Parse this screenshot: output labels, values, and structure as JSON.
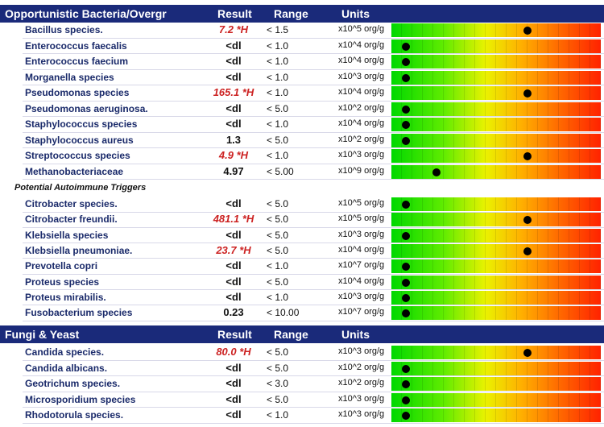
{
  "sections": [
    {
      "title": "Opportunistic Bacteria/Overgr",
      "col_result": "Result",
      "col_range": "Range",
      "col_units": "Units",
      "rows": [
        {
          "name": "Bacillus species.",
          "result": "7.2 *H",
          "high": true,
          "range": "< 1.5",
          "units": "x10^5 org/g",
          "level": 0.65
        },
        {
          "name": "Enterococcus faecalis",
          "result": "<dl",
          "high": false,
          "range": "< 1.0",
          "units": "x10^4 org/g",
          "level": 0.07
        },
        {
          "name": "Enterococcus faecium",
          "result": "<dl",
          "high": false,
          "range": "< 1.0",
          "units": "x10^4 org/g",
          "level": 0.07
        },
        {
          "name": "Morganella species",
          "result": "<dl",
          "high": false,
          "range": "< 1.0",
          "units": "x10^3 org/g",
          "level": 0.07
        },
        {
          "name": "Pseudomonas species",
          "result": "165.1 *H",
          "high": true,
          "range": "< 1.0",
          "units": "x10^4 org/g",
          "level": 0.65
        },
        {
          "name": "Pseudomonas aeruginosa.",
          "result": "<dl",
          "high": false,
          "range": "< 5.0",
          "units": "x10^2 org/g",
          "level": 0.07
        },
        {
          "name": "Staphylococcus species",
          "result": "<dl",
          "high": false,
          "range": "< 1.0",
          "units": "x10^4 org/g",
          "level": 0.07
        },
        {
          "name": "Staphylococcus aureus",
          "result": "1.3",
          "high": false,
          "range": "< 5.0",
          "units": "x10^2 org/g",
          "level": 0.07
        },
        {
          "name": "Streptococcus species",
          "result": "4.9 *H",
          "high": true,
          "range": "< 1.0",
          "units": "x10^3 org/g",
          "level": 0.65
        },
        {
          "name": "Methanobacteriaceae",
          "result": "4.97",
          "high": false,
          "range": "< 5.00",
          "units": "x10^9 org/g",
          "level": 0.215
        }
      ]
    },
    {
      "subtitle": "Potential Autoimmune Triggers",
      "rows": [
        {
          "name": "Citrobacter species.",
          "result": "<dl",
          "high": false,
          "range": "< 5.0",
          "units": "x10^5 org/g",
          "level": 0.07
        },
        {
          "name": "Citrobacter freundii.",
          "result": "481.1 *H",
          "high": true,
          "range": "< 5.0",
          "units": "x10^5 org/g",
          "level": 0.65
        },
        {
          "name": "Klebsiella species",
          "result": "<dl",
          "high": false,
          "range": "< 5.0",
          "units": "x10^3 org/g",
          "level": 0.07
        },
        {
          "name": "Klebsiella pneumoniae.",
          "result": "23.7 *H",
          "high": true,
          "range": "< 5.0",
          "units": "x10^4 org/g",
          "level": 0.65
        },
        {
          "name": "Prevotella copri",
          "result": "<dl",
          "high": false,
          "range": "< 1.0",
          "units": "x10^7 org/g",
          "level": 0.07
        },
        {
          "name": "Proteus species",
          "result": "<dl",
          "high": false,
          "range": "< 5.0",
          "units": "x10^4 org/g",
          "level": 0.07
        },
        {
          "name": "Proteus mirabilis.",
          "result": "<dl",
          "high": false,
          "range": "< 1.0",
          "units": "x10^3 org/g",
          "level": 0.07
        },
        {
          "name": "Fusobacterium species",
          "result": "0.23",
          "high": false,
          "range": "< 10.00",
          "units": "x10^7 org/g",
          "level": 0.07
        }
      ]
    },
    {
      "title": "Fungi & Yeast",
      "col_result": "Result",
      "col_range": "Range",
      "col_units": "Units",
      "rows": [
        {
          "name": "Candida species.",
          "result": "80.0 *H",
          "high": true,
          "range": "< 5.0",
          "units": "x10^3 org/g",
          "level": 0.65
        },
        {
          "name": "Candida albicans.",
          "result": "<dl",
          "high": false,
          "range": "< 5.0",
          "units": "x10^2 org/g",
          "level": 0.07
        },
        {
          "name": "Geotrichum species.",
          "result": "<dl",
          "high": false,
          "range": "< 3.0",
          "units": "x10^2 org/g",
          "level": 0.07
        },
        {
          "name": "Microsporidium species",
          "result": "<dl",
          "high": false,
          "range": "< 5.0",
          "units": "x10^3 org/g",
          "level": 0.07
        },
        {
          "name": "Rhodotorula species.",
          "result": "<dl",
          "high": false,
          "range": "< 1.0",
          "units": "x10^3 org/g",
          "level": 0.07
        }
      ]
    }
  ],
  "colors": {
    "header_bg": "#1a2a7a",
    "high_result": "#cc2222",
    "name_text": "#1a2a6a"
  }
}
